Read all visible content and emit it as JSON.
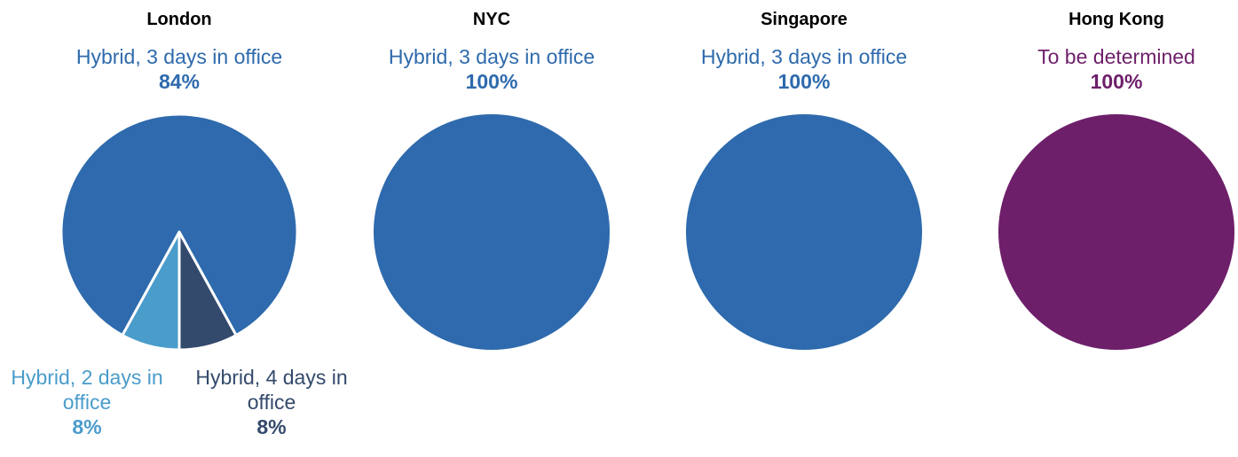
{
  "chart_data": [
    {
      "type": "pie",
      "title": "London",
      "categories": [
        "Hybrid, 3 days in office",
        "Hybrid, 4 days in office",
        "Hybrid, 2 days in office"
      ],
      "values": [
        84,
        8,
        8
      ],
      "value_labels": [
        "84%",
        "8%",
        "8%"
      ],
      "colors": [
        "#2e6aad",
        "#344a6c",
        "#4a9ccb"
      ]
    },
    {
      "type": "pie",
      "title": "NYC",
      "categories": [
        "Hybrid, 3 days in office"
      ],
      "values": [
        100
      ],
      "value_labels": [
        "100%"
      ],
      "colors": [
        "#2e6aad"
      ]
    },
    {
      "type": "pie",
      "title": "Singapore",
      "categories": [
        "Hybrid, 3 days in office"
      ],
      "values": [
        100
      ],
      "value_labels": [
        "100%"
      ],
      "colors": [
        "#2e6aad"
      ]
    },
    {
      "type": "pie",
      "title": "Hong Kong",
      "categories": [
        "To be determined"
      ],
      "values": [
        100
      ],
      "value_labels": [
        "100%"
      ],
      "colors": [
        "#6e1f6a"
      ]
    }
  ]
}
